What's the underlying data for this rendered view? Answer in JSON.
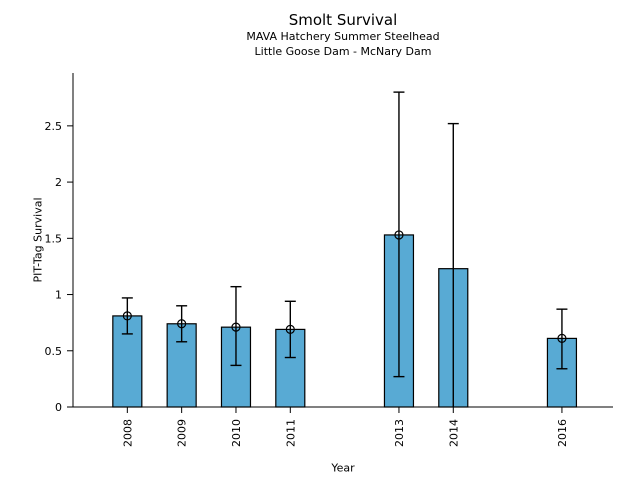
{
  "chart_data": {
    "type": "bar",
    "title": "Smolt Survival",
    "subtitle1": "MAVA Hatchery Summer Steelhead",
    "subtitle2": "Little Goose Dam - McNary Dam",
    "xlabel": "Year",
    "ylabel": "PIT-Tag Survival",
    "ylim": [
      0,
      2.97
    ],
    "xlim": [
      2007.0,
      2016.94
    ],
    "yticks": [
      0,
      0.5,
      1,
      1.5,
      2,
      2.5
    ],
    "ytick_labels": [
      "0",
      "0.5",
      "1",
      "1.5",
      "2",
      "2.5"
    ],
    "grid": false,
    "legend": null,
    "colors": {
      "bar_fill": "#58AAD4",
      "bar_edge": "#000000",
      "error": "#000000",
      "background": "#FFFFFF"
    },
    "series": [
      {
        "year": 2008,
        "label": "2008",
        "value": 0.81,
        "err_low": 0.65,
        "err_high": 0.97,
        "marker": true
      },
      {
        "year": 2009,
        "label": "2009",
        "value": 0.74,
        "err_low": 0.58,
        "err_high": 0.9,
        "marker": true
      },
      {
        "year": 2010,
        "label": "2010",
        "value": 0.71,
        "err_low": 0.37,
        "err_high": 1.07,
        "marker": true
      },
      {
        "year": 2011,
        "label": "2011",
        "value": 0.69,
        "err_low": 0.44,
        "err_high": 0.94,
        "marker": true
      },
      {
        "year": 2013,
        "label": "2013",
        "value": 1.53,
        "err_low": 0.27,
        "err_high": 2.8,
        "marker": true
      },
      {
        "year": 2014,
        "label": "2014",
        "value": 1.23,
        "err_low": 0.0,
        "err_high": 2.52,
        "marker": false
      },
      {
        "year": 2016,
        "label": "2016",
        "value": 0.61,
        "err_low": 0.34,
        "err_high": 0.87,
        "marker": true
      }
    ]
  }
}
